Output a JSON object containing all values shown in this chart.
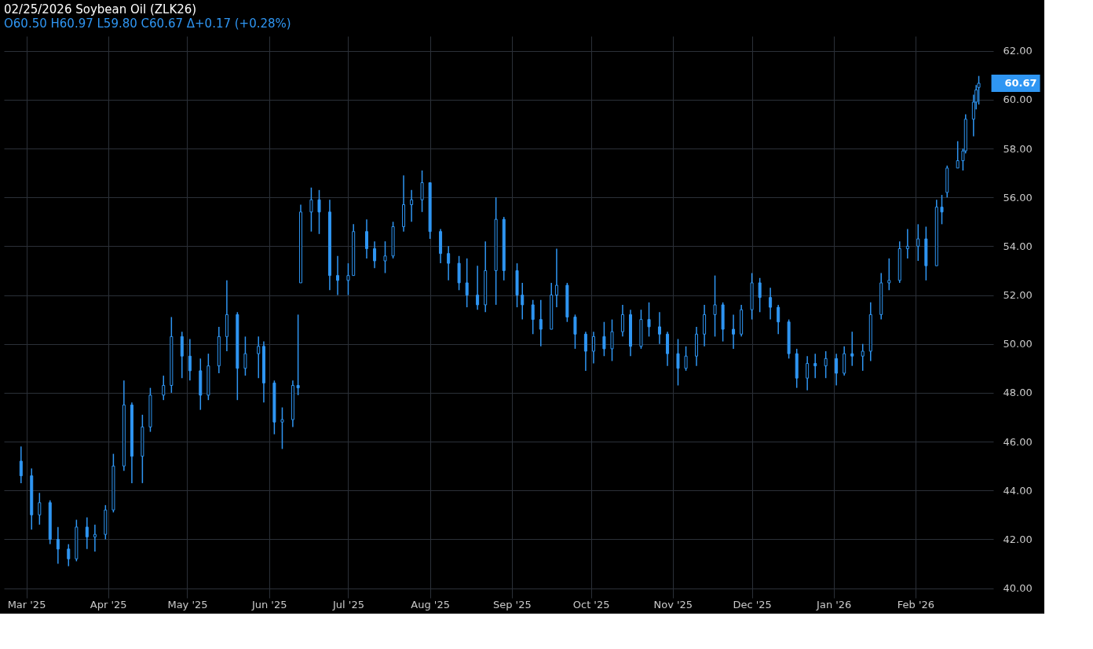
{
  "chart_data": {
    "type": "candlestick",
    "title": "02/25/2026 Soybean Oil (ZLK26)",
    "subtitle": "O60.50 H60.97 L59.80 C60.67 Δ+0.17 (+0.28%)",
    "color": "#2f96f3",
    "x": [
      "2025-02-27",
      "2025-03-03",
      "2025-03-06",
      "2025-03-10",
      "2025-03-13",
      "2025-03-17",
      "2025-03-20",
      "2025-03-24",
      "2025-03-27",
      "2025-03-31",
      "2025-04-03",
      "2025-04-07",
      "2025-04-10",
      "2025-04-14",
      "2025-04-17",
      "2025-04-22",
      "2025-04-25",
      "2025-04-29",
      "2025-05-02",
      "2025-05-06",
      "2025-05-09",
      "2025-05-13",
      "2025-05-16",
      "2025-05-20",
      "2025-05-23",
      "2025-05-28",
      "2025-05-30",
      "2025-06-03",
      "2025-06-06",
      "2025-06-10",
      "2025-06-12",
      "2025-06-13",
      "2025-06-17",
      "2025-06-20",
      "2025-06-24",
      "2025-06-27",
      "2025-07-01",
      "2025-07-03",
      "2025-07-08",
      "2025-07-11",
      "2025-07-15",
      "2025-07-18",
      "2025-07-22",
      "2025-07-25",
      "2025-07-29",
      "2025-08-01",
      "2025-08-05",
      "2025-08-08",
      "2025-08-12",
      "2025-08-15",
      "2025-08-19",
      "2025-08-22",
      "2025-08-26",
      "2025-08-29",
      "2025-09-03",
      "2025-09-05",
      "2025-09-09",
      "2025-09-12",
      "2025-09-16",
      "2025-09-18",
      "2025-09-22",
      "2025-09-25",
      "2025-09-29",
      "2025-10-02",
      "2025-10-06",
      "2025-10-09",
      "2025-10-13",
      "2025-10-16",
      "2025-10-20",
      "2025-10-23",
      "2025-10-27",
      "2025-10-30",
      "2025-11-03",
      "2025-11-06",
      "2025-11-10",
      "2025-11-13",
      "2025-11-17",
      "2025-11-20",
      "2025-11-24",
      "2025-11-27",
      "2025-12-01",
      "2025-12-04",
      "2025-12-08",
      "2025-12-11",
      "2025-12-15",
      "2025-12-18",
      "2025-12-22",
      "2025-12-25",
      "2025-12-29",
      "2026-01-02",
      "2026-01-05",
      "2026-01-08",
      "2026-01-12",
      "2026-01-15",
      "2026-01-19",
      "2026-01-22",
      "2026-01-26",
      "2026-01-29",
      "2026-02-02",
      "2026-02-05",
      "2026-02-09",
      "2026-02-11",
      "2026-02-13",
      "2026-02-17",
      "2026-02-19",
      "2026-02-20",
      "2026-02-23",
      "2026-02-24",
      "2026-02-25"
    ],
    "ohlc": [
      [
        45.2,
        45.8,
        44.3,
        44.6
      ],
      [
        44.6,
        44.9,
        42.4,
        43.0
      ],
      [
        43.0,
        43.9,
        42.6,
        43.5
      ],
      [
        43.5,
        43.6,
        41.8,
        42.0
      ],
      [
        42.0,
        42.5,
        41.0,
        41.6
      ],
      [
        41.6,
        41.8,
        40.9,
        41.2
      ],
      [
        41.2,
        42.8,
        41.1,
        42.5
      ],
      [
        42.5,
        42.9,
        41.6,
        42.1
      ],
      [
        42.1,
        42.6,
        41.5,
        42.2
      ],
      [
        42.2,
        43.4,
        42.0,
        43.2
      ],
      [
        43.2,
        45.5,
        43.1,
        45.0
      ],
      [
        45.0,
        48.5,
        44.8,
        47.5
      ],
      [
        47.5,
        47.6,
        44.3,
        45.4
      ],
      [
        45.4,
        47.1,
        44.3,
        46.6
      ],
      [
        46.6,
        48.2,
        46.4,
        47.9
      ],
      [
        47.9,
        48.7,
        47.7,
        48.3
      ],
      [
        48.3,
        51.1,
        48.0,
        50.3
      ],
      [
        50.3,
        50.5,
        48.6,
        49.5
      ],
      [
        49.5,
        50.2,
        48.5,
        48.9
      ],
      [
        48.9,
        49.4,
        47.3,
        47.9
      ],
      [
        47.9,
        49.6,
        47.7,
        49.1
      ],
      [
        49.1,
        50.7,
        48.8,
        50.3
      ],
      [
        50.3,
        52.6,
        49.7,
        51.2
      ],
      [
        51.2,
        51.3,
        47.7,
        49.0
      ],
      [
        49.0,
        50.3,
        48.7,
        49.6
      ],
      [
        49.6,
        50.3,
        48.6,
        49.9
      ],
      [
        49.9,
        50.1,
        47.6,
        48.4
      ],
      [
        48.4,
        48.5,
        46.3,
        46.8
      ],
      [
        46.8,
        47.4,
        45.7,
        46.9
      ],
      [
        46.9,
        48.5,
        46.6,
        48.3
      ],
      [
        48.3,
        51.2,
        47.9,
        48.2
      ],
      [
        52.5,
        55.7,
        52.5,
        55.4
      ],
      [
        55.4,
        56.4,
        54.6,
        55.9
      ],
      [
        55.9,
        56.3,
        54.5,
        55.4
      ],
      [
        55.4,
        55.9,
        52.2,
        52.8
      ],
      [
        52.8,
        53.6,
        52.0,
        52.6
      ],
      [
        52.6,
        53.3,
        52.0,
        52.8
      ],
      [
        52.8,
        54.9,
        52.8,
        54.6
      ],
      [
        54.6,
        55.1,
        53.5,
        53.9
      ],
      [
        53.9,
        54.2,
        53.1,
        53.4
      ],
      [
        53.4,
        54.2,
        52.9,
        53.6
      ],
      [
        53.6,
        55.0,
        53.5,
        54.8
      ],
      [
        54.8,
        56.9,
        54.6,
        55.7
      ],
      [
        55.7,
        56.3,
        55.0,
        55.9
      ],
      [
        55.9,
        57.1,
        55.4,
        56.6
      ],
      [
        56.6,
        56.6,
        54.3,
        54.6
      ],
      [
        54.6,
        54.7,
        53.3,
        53.7
      ],
      [
        53.7,
        54.0,
        52.6,
        53.3
      ],
      [
        53.3,
        53.6,
        52.2,
        52.5
      ],
      [
        52.5,
        53.5,
        51.5,
        52.0
      ],
      [
        52.0,
        53.2,
        51.4,
        51.6
      ],
      [
        51.6,
        54.2,
        51.3,
        53.0
      ],
      [
        53.0,
        56.0,
        51.6,
        55.1
      ],
      [
        55.1,
        55.2,
        52.6,
        53.0
      ],
      [
        53.0,
        53.3,
        51.5,
        52.0
      ],
      [
        52.0,
        52.5,
        51.0,
        51.6
      ],
      [
        51.6,
        51.8,
        50.4,
        51.0
      ],
      [
        51.0,
        51.8,
        49.9,
        50.6
      ],
      [
        50.6,
        52.5,
        50.6,
        52.0
      ],
      [
        52.0,
        53.9,
        51.5,
        52.4
      ],
      [
        52.4,
        52.5,
        50.9,
        51.1
      ],
      [
        51.1,
        51.2,
        49.8,
        50.4
      ],
      [
        50.4,
        50.5,
        48.9,
        49.7
      ],
      [
        49.7,
        50.5,
        49.2,
        50.3
      ],
      [
        50.3,
        50.9,
        49.5,
        49.8
      ],
      [
        49.8,
        51.0,
        49.3,
        50.5
      ],
      [
        50.5,
        51.6,
        50.3,
        51.2
      ],
      [
        51.2,
        51.4,
        49.5,
        49.9
      ],
      [
        49.9,
        51.4,
        49.8,
        51.0
      ],
      [
        51.0,
        51.7,
        50.3,
        50.7
      ],
      [
        50.7,
        51.3,
        50.0,
        50.4
      ],
      [
        50.4,
        50.5,
        49.1,
        49.6
      ],
      [
        49.6,
        50.2,
        48.3,
        49.0
      ],
      [
        49.0,
        49.9,
        48.9,
        49.5
      ],
      [
        49.5,
        50.7,
        49.1,
        50.4
      ],
      [
        50.4,
        51.6,
        49.9,
        51.2
      ],
      [
        51.2,
        52.8,
        50.3,
        51.6
      ],
      [
        51.6,
        51.7,
        50.1,
        50.6
      ],
      [
        50.6,
        51.2,
        49.8,
        50.4
      ],
      [
        50.4,
        51.6,
        50.3,
        51.4
      ],
      [
        51.4,
        52.9,
        51.0,
        52.5
      ],
      [
        52.5,
        52.7,
        51.3,
        51.9
      ],
      [
        51.9,
        52.3,
        51.0,
        51.5
      ],
      [
        51.5,
        51.6,
        50.4,
        50.9
      ],
      [
        50.9,
        51.0,
        49.4,
        49.6
      ],
      [
        49.6,
        49.8,
        48.2,
        48.6
      ],
      [
        48.6,
        49.5,
        48.1,
        49.2
      ],
      [
        49.2,
        49.6,
        48.6,
        49.1
      ],
      [
        49.1,
        49.7,
        48.6,
        49.4
      ],
      [
        49.4,
        49.6,
        48.3,
        48.8
      ],
      [
        48.8,
        49.9,
        48.7,
        49.6
      ],
      [
        49.6,
        50.5,
        49.1,
        49.5
      ],
      [
        49.5,
        50.0,
        48.9,
        49.7
      ],
      [
        49.7,
        51.7,
        49.3,
        51.2
      ],
      [
        51.2,
        52.9,
        51.0,
        52.5
      ],
      [
        52.5,
        53.5,
        52.2,
        52.6
      ],
      [
        52.6,
        54.2,
        52.5,
        53.9
      ],
      [
        53.9,
        54.7,
        53.5,
        54.0
      ],
      [
        54.0,
        54.9,
        53.4,
        54.3
      ],
      [
        54.3,
        54.8,
        52.6,
        53.2
      ],
      [
        53.2,
        55.9,
        53.2,
        55.6
      ],
      [
        55.6,
        56.1,
        54.9,
        55.4
      ],
      [
        56.2,
        57.3,
        56.0,
        57.2
      ],
      [
        57.2,
        58.3,
        57.2,
        57.5
      ],
      [
        57.5,
        58.0,
        57.1,
        57.9
      ],
      [
        57.9,
        59.4,
        57.8,
        59.2
      ],
      [
        59.2,
        60.2,
        58.5,
        59.9
      ],
      [
        59.9,
        60.6,
        59.6,
        60.4
      ],
      [
        60.5,
        60.97,
        59.8,
        60.67
      ]
    ],
    "xlim": [
      "2025-02-22",
      "2026-03-01"
    ],
    "xticks": [
      {
        "value": "2025-03-01",
        "label": "Mar '25"
      },
      {
        "value": "2025-04-01",
        "label": "Apr '25"
      },
      {
        "value": "2025-05-01",
        "label": "May '25"
      },
      {
        "value": "2025-06-01",
        "label": "Jun '25"
      },
      {
        "value": "2025-07-01",
        "label": "Jul '25"
      },
      {
        "value": "2025-08-01",
        "label": "Aug '25"
      },
      {
        "value": "2025-09-01",
        "label": "Sep '25"
      },
      {
        "value": "2025-10-01",
        "label": "Oct '25"
      },
      {
        "value": "2025-11-01",
        "label": "Nov '25"
      },
      {
        "value": "2025-12-01",
        "label": "Dec '25"
      },
      {
        "value": "2026-01-01",
        "label": "Jan '26"
      },
      {
        "value": "2026-02-01",
        "label": "Feb '26"
      }
    ],
    "ylim": [
      39.6,
      62.6
    ],
    "yticks": [
      {
        "value": 40,
        "label": "40.00"
      },
      {
        "value": 42,
        "label": "42.00"
      },
      {
        "value": 44,
        "label": "44.00"
      },
      {
        "value": 46,
        "label": "46.00"
      },
      {
        "value": 48,
        "label": "48.00"
      },
      {
        "value": 50,
        "label": "50.00"
      },
      {
        "value": 52,
        "label": "52.00"
      },
      {
        "value": 54,
        "label": "54.00"
      },
      {
        "value": 56,
        "label": "56.00"
      },
      {
        "value": 58,
        "label": "58.00"
      },
      {
        "value": 60,
        "label": "60.00"
      },
      {
        "value": 62,
        "label": "62.00"
      }
    ],
    "grid": true,
    "annotations": [
      {
        "text": "60.67",
        "x": "2026-02-25",
        "y": 60.67
      }
    ]
  }
}
